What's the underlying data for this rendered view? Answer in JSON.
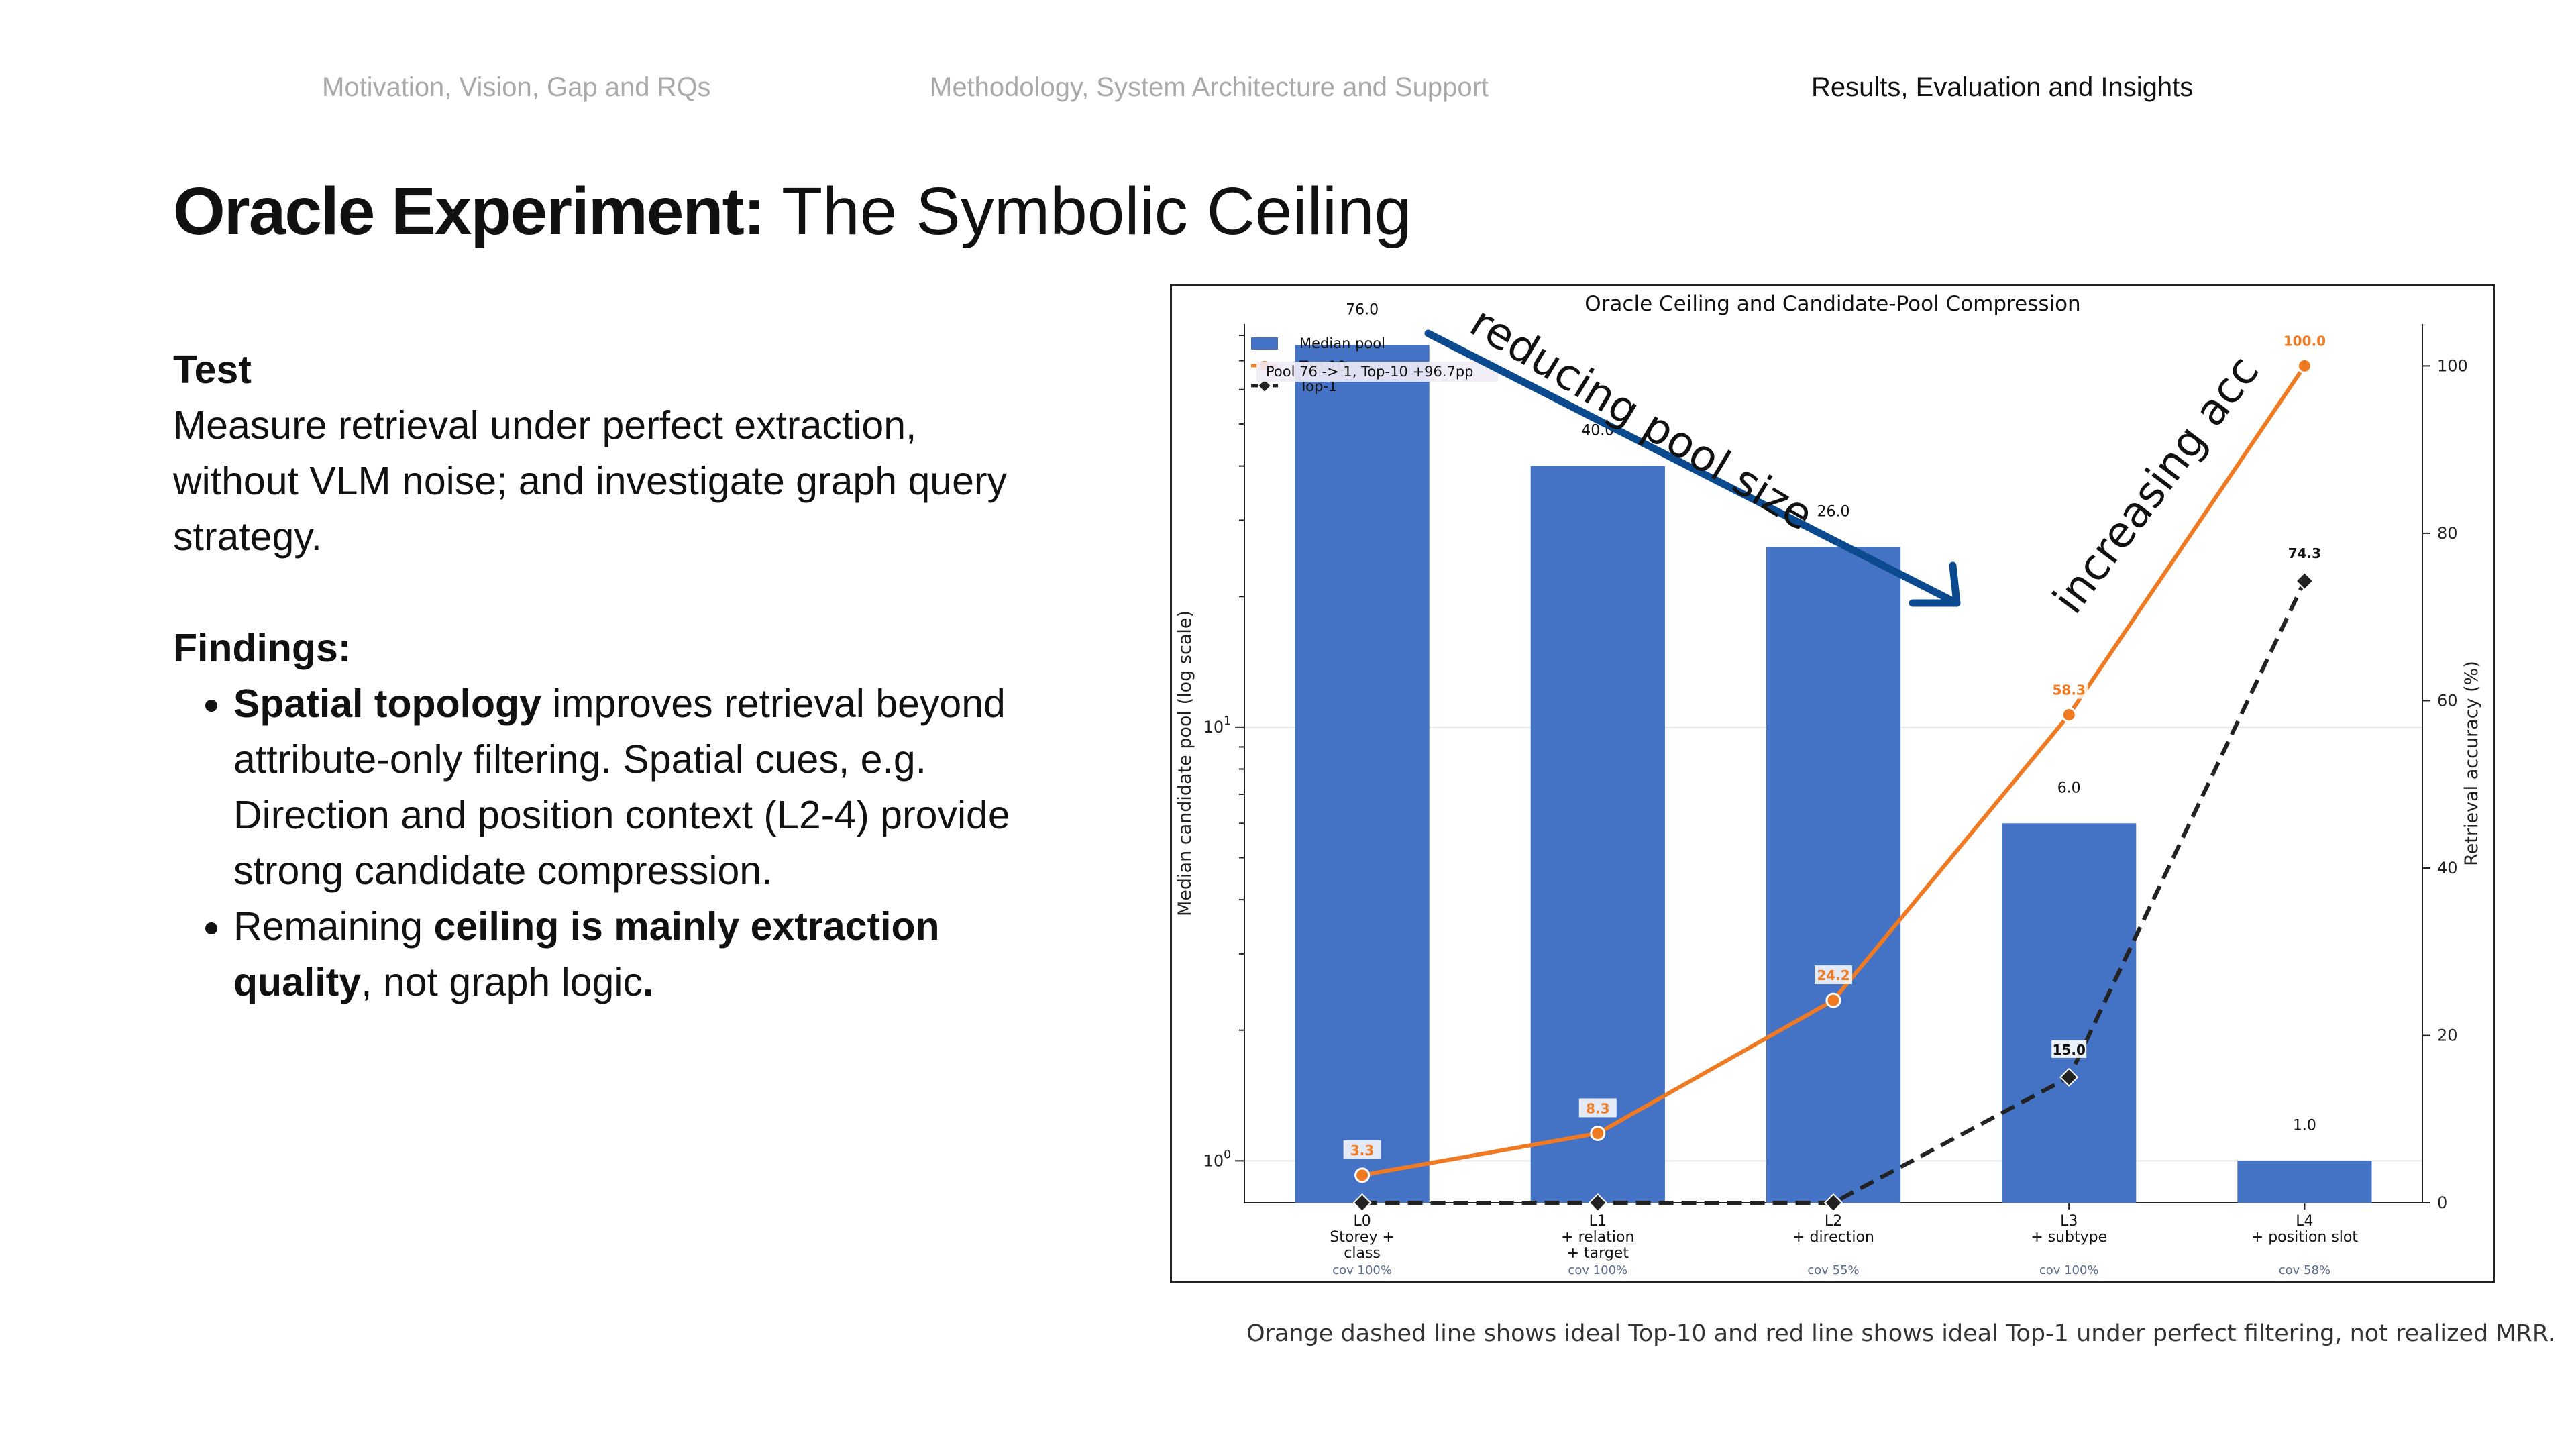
{
  "nav": {
    "item1": "Motivation, Vision, Gap and RQs",
    "item2": "Methodology, System Architecture and Support",
    "item3": "Results, Evaluation and Insights"
  },
  "title": {
    "bold": "Oracle Experiment:",
    "rest": " The Symbolic Ceiling"
  },
  "test": {
    "heading": "Test",
    "body": "Measure retrieval under perfect extraction, without VLM noise; and investigate graph query strategy."
  },
  "findings": {
    "heading": "Findings:",
    "b1_bold": "Spatial topology",
    "b1_rest": " improves retrieval beyond attribute-only filtering. Spatial cues, e.g. Direction and position context (L2-4) provide strong candidate compression.",
    "b2_pre": "Remaining ",
    "b2_bold": "ceiling is mainly extraction quality",
    "b2_rest": ", not graph logic",
    "b2_end": "."
  },
  "annotations": {
    "pool": "reducing pool size",
    "acc": "increasing acc"
  },
  "caption": "Orange dashed line shows ideal Top-10 and red line shows ideal Top-1 under perfect filtering, not realized MRR.",
  "colors": {
    "bar": "#4472c4",
    "top10": "#f07a22",
    "top1": "#222222",
    "arrow": "#0b4a8f"
  },
  "chart_data": {
    "type": "bar",
    "title": "Oracle Ceiling and Candidate-Pool Compression",
    "ylabel": "Median candidate pool (log scale)",
    "y2label": "Retrieval accuracy (%)",
    "yscale": "log",
    "ylim": [
      0.8,
      85
    ],
    "y2lim": [
      0,
      105
    ],
    "y2ticks": [
      "0",
      "20",
      "40",
      "60",
      "80",
      "100"
    ],
    "categories": [
      [
        "L0",
        "Storey +",
        "class"
      ],
      [
        "L1",
        "+ relation",
        "+ target"
      ],
      [
        "L2",
        "+ direction"
      ],
      [
        "L3",
        "+ subtype"
      ],
      [
        "L4",
        "+ position slot"
      ]
    ],
    "coverage": [
      "cov 100%",
      "cov 100%",
      "cov 55%",
      "cov 100%",
      "cov 58%"
    ],
    "series": [
      {
        "name": "Median pool",
        "kind": "bar",
        "values": [
          76.0,
          40.0,
          26.0,
          6.0,
          1.0
        ],
        "labels": [
          "76.0",
          "40.0",
          "26.0",
          "6.0",
          "1.0"
        ]
      },
      {
        "name": "Top-10",
        "kind": "line",
        "values": [
          3.3,
          8.3,
          24.2,
          58.3,
          100.0
        ],
        "labels": [
          "3.3",
          "8.3",
          "24.2",
          "58.3",
          "100.0"
        ]
      },
      {
        "name": "Top-1",
        "kind": "line",
        "values": [
          0,
          0,
          0,
          15.0,
          74.3
        ],
        "labels": [
          "",
          "",
          "",
          "15.0",
          "74.3"
        ]
      }
    ],
    "legend_placement": "top-left",
    "annotation": "Pool 76 -> 1, Top-10 +96.7pp",
    "grid": true
  }
}
